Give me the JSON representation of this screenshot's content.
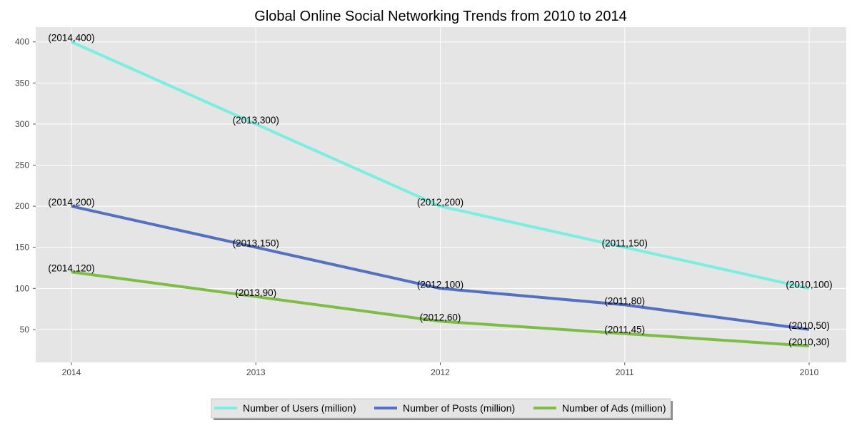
{
  "chart_data": {
    "type": "line",
    "title": "Global Online Social Networking Trends from 2010 to 2014",
    "xlabel": "",
    "ylabel": "",
    "categories": [
      "2014",
      "2013",
      "2012",
      "2011",
      "2010"
    ],
    "ylim": [
      10,
      418
    ],
    "yticks": [
      50,
      100,
      150,
      200,
      250,
      300,
      350,
      400
    ],
    "grid": true,
    "legend_position": "bottom-center",
    "series": [
      {
        "name": "Number of Users (million)",
        "color": "#7aeee0",
        "values": [
          400,
          300,
          200,
          150,
          100
        ],
        "labels": [
          "(2014,400)",
          "(2013,300)",
          "(2012,200)",
          "(2011,150)",
          "(2010,100)"
        ]
      },
      {
        "name": "Number of Posts (million)",
        "color": "#5470c0",
        "values": [
          200,
          150,
          100,
          80,
          50
        ],
        "labels": [
          "(2014,200)",
          "(2013,150)",
          "(2012,100)",
          "(2011,80)",
          "(2010,50)"
        ]
      },
      {
        "name": "Number of Ads (million)",
        "color": "#7dbd45",
        "values": [
          120,
          90,
          60,
          45,
          30
        ],
        "labels": [
          "(2014,120)",
          "(2013,90)",
          "(2012,60)",
          "(2011,45)",
          "(2010,30)"
        ]
      }
    ]
  }
}
